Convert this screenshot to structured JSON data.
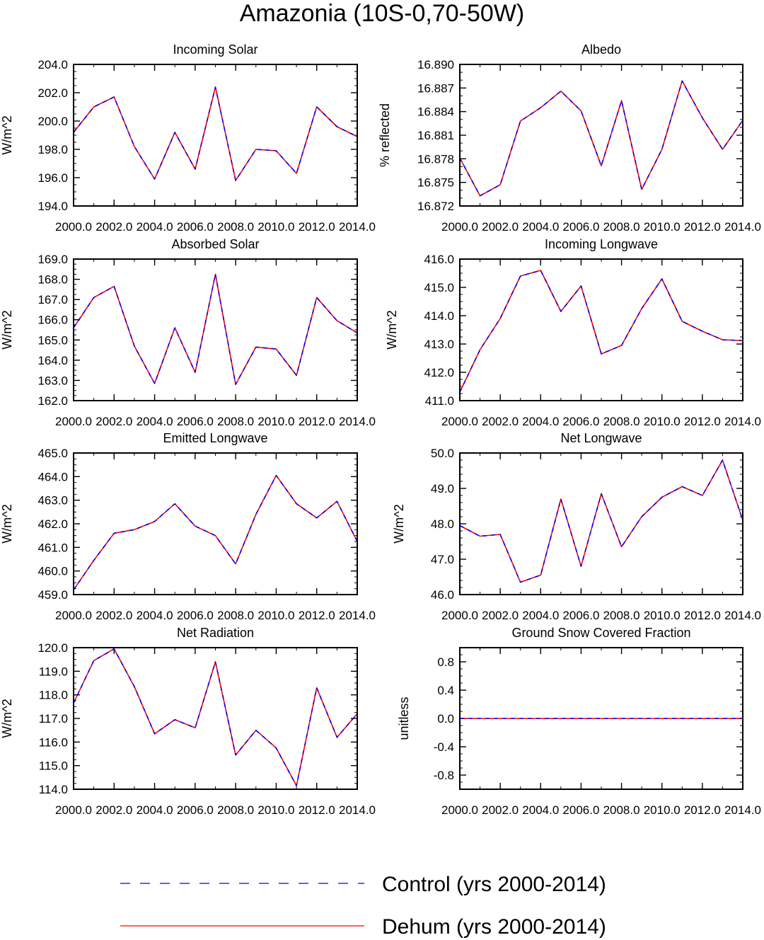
{
  "figure": {
    "title": "Amazonia (10S-0,70-50W)"
  },
  "legend": {
    "placement": "bottom-center",
    "entries": [
      {
        "label": "Control (yrs 2000-2014)",
        "color": "#0000ff",
        "style": "dashed"
      },
      {
        "label": "Dehum (yrs 2000-2014)",
        "color": "#ff0000",
        "style": "solid"
      }
    ]
  },
  "chart_data": [
    {
      "type": "line",
      "title": "Incoming Solar",
      "xlabel": "",
      "ylabel": "W/m^2",
      "xlim": [
        2000,
        2014
      ],
      "xticks": [
        2000,
        2002,
        2004,
        2006,
        2008,
        2010,
        2012,
        2014
      ],
      "xticklabels": [
        "2000.0",
        "2002.0",
        "2004.0",
        "2006.0",
        "2008.0",
        "2010.0",
        "2012.0",
        "2014.0"
      ],
      "ylim": [
        194,
        204
      ],
      "yticks": [
        194,
        196,
        198,
        200,
        202,
        204
      ],
      "yticklabels": [
        "194.0",
        "196.0",
        "198.0",
        "200.0",
        "202.0",
        "204.0"
      ],
      "yminor": 0.5,
      "x": [
        2000,
        2001,
        2002,
        2003,
        2004,
        2005,
        2006,
        2007,
        2008,
        2009,
        2010,
        2011,
        2012,
        2013,
        2014
      ],
      "series": [
        {
          "name": "Control (yrs 2000-2014)",
          "values": [
            199.2,
            201.0,
            201.7,
            198.2,
            195.9,
            199.2,
            196.6,
            202.4,
            195.8,
            198.0,
            197.9,
            196.3,
            201.0,
            199.6,
            198.9
          ]
        },
        {
          "name": "Dehum (yrs 2000-2014)",
          "values": [
            199.2,
            201.0,
            201.7,
            198.2,
            195.9,
            199.2,
            196.6,
            202.4,
            195.8,
            198.0,
            197.9,
            196.3,
            201.0,
            199.6,
            198.9
          ]
        }
      ]
    },
    {
      "type": "line",
      "title": "Albedo",
      "xlabel": "",
      "ylabel": "% reflected",
      "xlim": [
        2000,
        2014
      ],
      "xticks": [
        2000,
        2002,
        2004,
        2006,
        2008,
        2010,
        2012,
        2014
      ],
      "xticklabels": [
        "2000.0",
        "2002.0",
        "2004.0",
        "2006.0",
        "2008.0",
        "2010.0",
        "2012.0",
        "2014.0"
      ],
      "ylim": [
        16.872,
        16.89
      ],
      "yticks": [
        16.872,
        16.875,
        16.878,
        16.881,
        16.884,
        16.887,
        16.89
      ],
      "yticklabels": [
        "16.872",
        "16.875",
        "16.878",
        "16.881",
        "16.884",
        "16.887",
        "16.890"
      ],
      "yminor": 0.001,
      "x": [
        2000,
        2001,
        2002,
        2003,
        2004,
        2005,
        2006,
        2007,
        2008,
        2009,
        2010,
        2011,
        2012,
        2013,
        2014
      ],
      "series": [
        {
          "name": "Control (yrs 2000-2014)",
          "values": [
            16.8781,
            16.8733,
            16.8747,
            16.8828,
            16.8845,
            16.8866,
            16.8841,
            16.8771,
            16.8854,
            16.8741,
            16.8792,
            16.8879,
            16.8832,
            16.8792,
            16.8829
          ]
        },
        {
          "name": "Dehum (yrs 2000-2014)",
          "values": [
            16.8781,
            16.8733,
            16.8747,
            16.8828,
            16.8845,
            16.8866,
            16.8841,
            16.8771,
            16.8854,
            16.8741,
            16.8792,
            16.8879,
            16.8832,
            16.8792,
            16.8829
          ]
        }
      ]
    },
    {
      "type": "line",
      "title": "Absorbed Solar",
      "xlabel": "",
      "ylabel": "W/m^2",
      "xlim": [
        2000,
        2014
      ],
      "xticks": [
        2000,
        2002,
        2004,
        2006,
        2008,
        2010,
        2012,
        2014
      ],
      "xticklabels": [
        "2000.0",
        "2002.0",
        "2004.0",
        "2006.0",
        "2008.0",
        "2010.0",
        "2012.0",
        "2014.0"
      ],
      "ylim": [
        162,
        169
      ],
      "yticks": [
        162,
        163,
        164,
        165,
        166,
        167,
        168,
        169
      ],
      "yticklabels": [
        "162.0",
        "163.0",
        "164.0",
        "165.0",
        "166.0",
        "167.0",
        "168.0",
        "169.0"
      ],
      "yminor": 0.25,
      "x": [
        2000,
        2001,
        2002,
        2003,
        2004,
        2005,
        2006,
        2007,
        2008,
        2009,
        2010,
        2011,
        2012,
        2013,
        2014
      ],
      "series": [
        {
          "name": "Control (yrs 2000-2014)",
          "values": [
            165.6,
            167.1,
            167.65,
            164.7,
            162.85,
            165.6,
            163.4,
            168.25,
            162.8,
            164.65,
            164.55,
            163.25,
            167.1,
            165.95,
            165.35
          ]
        },
        {
          "name": "Dehum (yrs 2000-2014)",
          "values": [
            165.6,
            167.1,
            167.65,
            164.7,
            162.85,
            165.6,
            163.4,
            168.25,
            162.8,
            164.65,
            164.55,
            163.25,
            167.1,
            165.95,
            165.35
          ]
        }
      ]
    },
    {
      "type": "line",
      "title": "Incoming Longwave",
      "xlabel": "",
      "ylabel": "W/m^2",
      "xlim": [
        2000,
        2014
      ],
      "xticks": [
        2000,
        2002,
        2004,
        2006,
        2008,
        2010,
        2012,
        2014
      ],
      "xticklabels": [
        "2000.0",
        "2002.0",
        "2004.0",
        "2006.0",
        "2008.0",
        "2010.0",
        "2012.0",
        "2014.0"
      ],
      "ylim": [
        411,
        416
      ],
      "yticks": [
        411,
        412,
        413,
        414,
        415,
        416
      ],
      "yticklabels": [
        "411.0",
        "412.0",
        "413.0",
        "414.0",
        "415.0",
        "416.0"
      ],
      "yminor": 0.25,
      "x": [
        2000,
        2001,
        2002,
        2003,
        2004,
        2005,
        2006,
        2007,
        2008,
        2009,
        2010,
        2011,
        2012,
        2013,
        2014
      ],
      "series": [
        {
          "name": "Control (yrs 2000-2014)",
          "values": [
            411.3,
            412.8,
            413.9,
            415.4,
            415.6,
            414.15,
            415.05,
            412.65,
            412.95,
            414.25,
            415.3,
            413.8,
            413.45,
            413.15,
            413.12
          ]
        },
        {
          "name": "Dehum (yrs 2000-2014)",
          "values": [
            411.3,
            412.8,
            413.9,
            415.4,
            415.6,
            414.15,
            415.05,
            412.65,
            412.95,
            414.25,
            415.3,
            413.8,
            413.45,
            413.15,
            413.12
          ]
        }
      ]
    },
    {
      "type": "line",
      "title": "Emitted Longwave",
      "xlabel": "",
      "ylabel": "W/m^2",
      "xlim": [
        2000,
        2014
      ],
      "xticks": [
        2000,
        2002,
        2004,
        2006,
        2008,
        2010,
        2012,
        2014
      ],
      "xticklabels": [
        "2000.0",
        "2002.0",
        "2004.0",
        "2006.0",
        "2008.0",
        "2010.0",
        "2012.0",
        "2014.0"
      ],
      "ylim": [
        459,
        465
      ],
      "yticks": [
        459,
        460,
        461,
        462,
        463,
        464,
        465
      ],
      "yticklabels": [
        "459.0",
        "460.0",
        "461.0",
        "462.0",
        "463.0",
        "464.0",
        "465.0"
      ],
      "yminor": 0.25,
      "x": [
        2000,
        2001,
        2002,
        2003,
        2004,
        2005,
        2006,
        2007,
        2008,
        2009,
        2010,
        2011,
        2012,
        2013,
        2014
      ],
      "series": [
        {
          "name": "Control (yrs 2000-2014)",
          "values": [
            459.2,
            460.45,
            461.6,
            461.75,
            462.1,
            462.85,
            461.9,
            461.5,
            460.3,
            462.4,
            464.05,
            462.85,
            462.25,
            462.95,
            461.25
          ]
        },
        {
          "name": "Dehum (yrs 2000-2014)",
          "values": [
            459.2,
            460.45,
            461.6,
            461.75,
            462.1,
            462.85,
            461.9,
            461.5,
            460.3,
            462.4,
            464.05,
            462.85,
            462.25,
            462.95,
            461.25
          ]
        }
      ]
    },
    {
      "type": "line",
      "title": "Net Longwave",
      "xlabel": "",
      "ylabel": "W/m^2",
      "xlim": [
        2000,
        2014
      ],
      "xticks": [
        2000,
        2002,
        2004,
        2006,
        2008,
        2010,
        2012,
        2014
      ],
      "xticklabels": [
        "2000.0",
        "2002.0",
        "2004.0",
        "2006.0",
        "2008.0",
        "2010.0",
        "2012.0",
        "2014.0"
      ],
      "ylim": [
        46,
        50
      ],
      "yticks": [
        46,
        47,
        48,
        49,
        50
      ],
      "yticklabels": [
        "46.0",
        "47.0",
        "48.0",
        "49.0",
        "50.0"
      ],
      "yminor": 0.2,
      "x": [
        2000,
        2001,
        2002,
        2003,
        2004,
        2005,
        2006,
        2007,
        2008,
        2009,
        2010,
        2011,
        2012,
        2013,
        2014
      ],
      "series": [
        {
          "name": "Control (yrs 2000-2014)",
          "values": [
            47.95,
            47.65,
            47.7,
            46.35,
            46.55,
            48.7,
            46.8,
            48.85,
            47.35,
            48.2,
            48.75,
            49.05,
            48.8,
            49.8,
            48.1
          ]
        },
        {
          "name": "Dehum (yrs 2000-2014)",
          "values": [
            47.95,
            47.65,
            47.7,
            46.35,
            46.55,
            48.7,
            46.8,
            48.85,
            47.35,
            48.2,
            48.75,
            49.05,
            48.8,
            49.8,
            48.1
          ]
        }
      ]
    },
    {
      "type": "line",
      "title": "Net Radiation",
      "xlabel": "",
      "ylabel": "W/m^2",
      "xlim": [
        2000,
        2014
      ],
      "xticks": [
        2000,
        2002,
        2004,
        2006,
        2008,
        2010,
        2012,
        2014
      ],
      "xticklabels": [
        "2000.0",
        "2002.0",
        "2004.0",
        "2006.0",
        "2008.0",
        "2010.0",
        "2012.0",
        "2014.0"
      ],
      "ylim": [
        114,
        120
      ],
      "yticks": [
        114,
        115,
        116,
        117,
        118,
        119,
        120
      ],
      "yticklabels": [
        "114.0",
        "115.0",
        "116.0",
        "117.0",
        "118.0",
        "119.0",
        "120.0"
      ],
      "yminor": 0.25,
      "x": [
        2000,
        2001,
        2002,
        2003,
        2004,
        2005,
        2006,
        2007,
        2008,
        2009,
        2010,
        2011,
        2012,
        2013,
        2014
      ],
      "series": [
        {
          "name": "Control (yrs 2000-2014)",
          "values": [
            117.65,
            119.45,
            119.95,
            118.35,
            116.35,
            116.95,
            116.6,
            119.4,
            115.45,
            116.5,
            115.75,
            114.15,
            118.3,
            116.2,
            117.2
          ]
        },
        {
          "name": "Dehum (yrs 2000-2014)",
          "values": [
            117.65,
            119.45,
            119.95,
            118.35,
            116.35,
            116.95,
            116.6,
            119.4,
            115.45,
            116.5,
            115.75,
            114.15,
            118.3,
            116.2,
            117.2
          ]
        }
      ]
    },
    {
      "type": "line",
      "title": "Ground Snow Covered Fraction",
      "xlabel": "",
      "ylabel": "unitless",
      "xlim": [
        2000,
        2014
      ],
      "xticks": [
        2000,
        2002,
        2004,
        2006,
        2008,
        2010,
        2012,
        2014
      ],
      "xticklabels": [
        "2000.0",
        "2002.0",
        "2004.0",
        "2006.0",
        "2008.0",
        "2010.0",
        "2012.0",
        "2014.0"
      ],
      "ylim": [
        -1.0,
        1.0
      ],
      "yticks": [
        -0.8,
        -0.4,
        0.0,
        0.4,
        0.8
      ],
      "yticklabels": [
        "-0.8",
        "-0.4",
        "0.0",
        "0.4",
        "0.8"
      ],
      "yminor": 0.1,
      "x": [
        2000,
        2001,
        2002,
        2003,
        2004,
        2005,
        2006,
        2007,
        2008,
        2009,
        2010,
        2011,
        2012,
        2013,
        2014
      ],
      "series": [
        {
          "name": "Control (yrs 2000-2014)",
          "values": [
            0,
            0,
            0,
            0,
            0,
            0,
            0,
            0,
            0,
            0,
            0,
            0,
            0,
            0,
            0
          ]
        },
        {
          "name": "Dehum (yrs 2000-2014)",
          "values": [
            0,
            0,
            0,
            0,
            0,
            0,
            0,
            0,
            0,
            0,
            0,
            0,
            0,
            0,
            0
          ]
        }
      ]
    }
  ]
}
